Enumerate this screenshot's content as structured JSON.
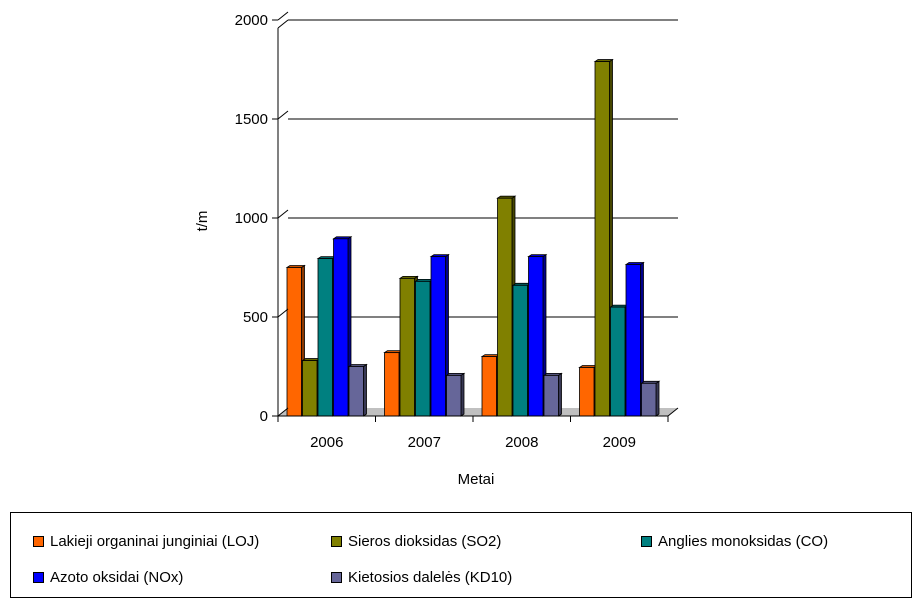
{
  "chart_data": {
    "type": "bar",
    "title": "",
    "xlabel": "Metai",
    "ylabel": "t/m",
    "categories": [
      "2006",
      "2007",
      "2008",
      "2009"
    ],
    "ylim": [
      0,
      2000
    ],
    "yticks": [
      0,
      500,
      1000,
      1500,
      2000
    ],
    "grid": true,
    "legend_position": "bottom",
    "series": [
      {
        "name": "Lakieji organinai junginiai (LOJ)",
        "color": "#ff6600",
        "values": [
          750,
          320,
          300,
          245
        ]
      },
      {
        "name": "Sieros dioksidas (SO2)",
        "color": "#808000",
        "values": [
          280,
          695,
          1100,
          1790
        ]
      },
      {
        "name": "Anglies monoksidas (CO)",
        "color": "#008080",
        "values": [
          795,
          680,
          660,
          550
        ]
      },
      {
        "name": "Azoto oksidai (NOx)",
        "color": "#0000ff",
        "values": [
          895,
          805,
          805,
          765
        ]
      },
      {
        "name": "Kietosios dalelės (KD10)",
        "color": "#666699",
        "values": [
          250,
          205,
          205,
          165
        ]
      }
    ]
  }
}
